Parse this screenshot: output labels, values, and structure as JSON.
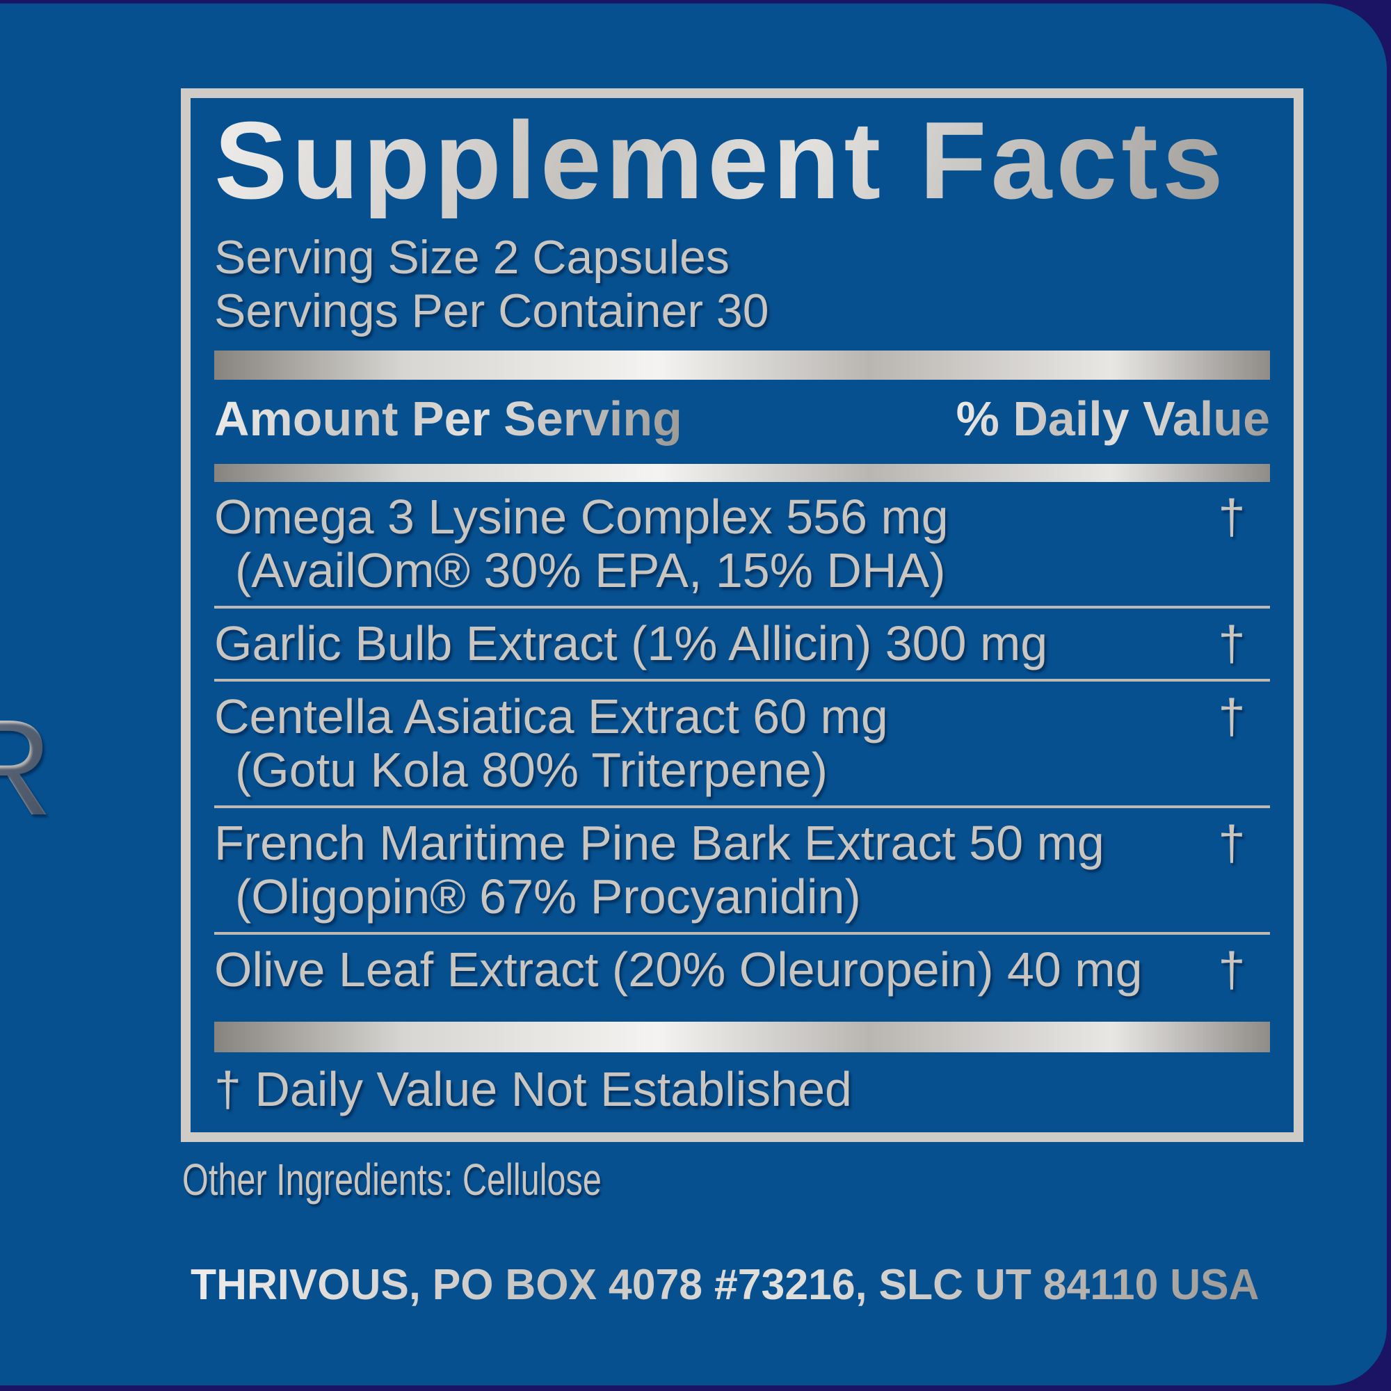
{
  "colors": {
    "label_blue": "#06508F",
    "edge_navy": "#1B1464",
    "silver_text": "#C9C6C2",
    "panel_border": "#CFCCC7"
  },
  "side_text": "R",
  "panel": {
    "title": "Supplement Facts",
    "serving_size": "Serving Size 2 Capsules",
    "servings_per_container": "Servings Per Container 30",
    "columns": {
      "amount": "Amount Per Serving",
      "daily_value": "% Daily Value"
    },
    "rows": [
      {
        "line1": "Omega 3 Lysine Complex 556 mg",
        "line2": "(AvailOm® 30% EPA, 15% DHA)",
        "daily_value": "†"
      },
      {
        "line1": "Garlic Bulb Extract (1% Allicin) 300 mg",
        "daily_value": "†"
      },
      {
        "line1": "Centella Asiatica Extract 60 mg",
        "line2": "(Gotu Kola 80% Triterpene)",
        "daily_value": "†"
      },
      {
        "line1": "French Maritime Pine Bark Extract 50 mg",
        "line2": "(Oligopin® 67% Procyanidin)",
        "daily_value": "†"
      },
      {
        "line1": "Olive Leaf Extract (20% Oleuropein) 40 mg",
        "daily_value": "†"
      }
    ],
    "footnote": "† Daily Value Not Established"
  },
  "other_ingredients": "Other Ingredients: Cellulose",
  "manufacturer": "THRIVOUS, PO BOX 4078 #73216, SLC UT 84110 USA"
}
